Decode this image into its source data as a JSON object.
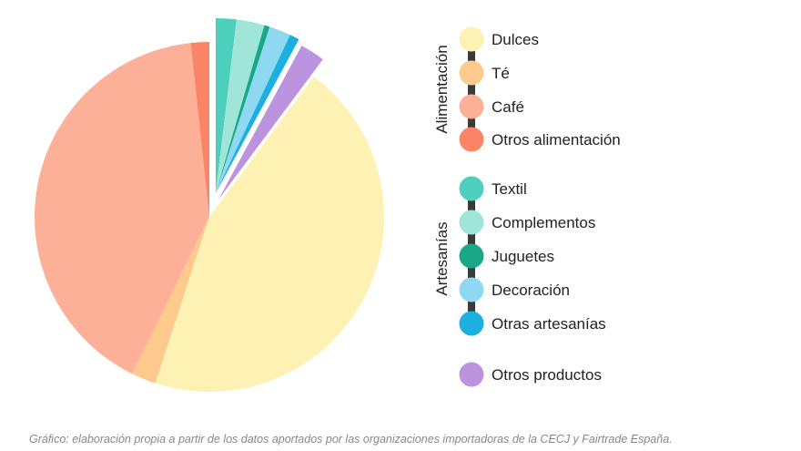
{
  "chart_data": {
    "type": "pie",
    "title": "",
    "groups": [
      {
        "name": "Alimentación",
        "items": [
          {
            "label": "Dulces",
            "value": 44.8,
            "color": "#fdf1b4"
          },
          {
            "label": "Té",
            "value": 2.3,
            "color": "#fdc98c"
          },
          {
            "label": "Café",
            "value": 41.0,
            "color": "#fcb098"
          },
          {
            "label": "Otros alimentación",
            "value": 1.7,
            "color": "#fc8466"
          }
        ]
      },
      {
        "name": "Artesanías",
        "items": [
          {
            "label": "Textil",
            "value": 1.9,
            "color": "#4ccfbd"
          },
          {
            "label": "Complementos",
            "value": 2.6,
            "color": "#9fe6d8"
          },
          {
            "label": "Juguetes",
            "value": 0.5,
            "color": "#18a888"
          },
          {
            "label": "Decoración",
            "value": 2.0,
            "color": "#8ed8f2"
          },
          {
            "label": "Otras artesanías",
            "value": 0.9,
            "color": "#1cb0e0"
          }
        ]
      },
      {
        "name": "",
        "items": [
          {
            "label": "Otros productos",
            "value": 2.3,
            "color": "#bb93de"
          }
        ]
      }
    ],
    "legend_position": "right",
    "footer": "Gráfico: elaboración propia a partir de los datos aportados por las organizaciones importadoras de la CECJ y Fairtrade España."
  }
}
